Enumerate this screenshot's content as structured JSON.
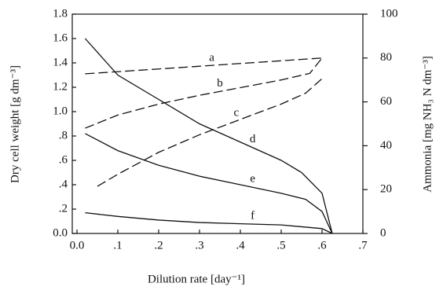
{
  "chart_data": {
    "type": "line",
    "x_label": "Dilution rate [day⁻¹]",
    "y_label": "Dry cell weight [g dm⁻³]",
    "y2_label": "Ammonia [mg NH₃ N dm⁻³]",
    "xlim": [
      0,
      0.7
    ],
    "xticks": [
      {
        "value": 0,
        "label": "0.0"
      },
      {
        "value": 0.1,
        "label": ".1"
      },
      {
        "value": 0.2,
        "label": ".2"
      },
      {
        "value": 0.3,
        "label": ".3"
      },
      {
        "value": 0.4,
        "label": ".4"
      },
      {
        "value": 0.5,
        "label": ".5"
      },
      {
        "value": 0.6,
        "label": ".6"
      },
      {
        "value": 0.7,
        "label": ".7"
      }
    ],
    "ylim": [
      0,
      1.8
    ],
    "yticks": [
      {
        "value": 0,
        "label": "0.0"
      },
      {
        "value": 0.2,
        "label": ".2"
      },
      {
        "value": 0.4,
        "label": ".4"
      },
      {
        "value": 0.6,
        "label": ".6"
      },
      {
        "value": 0.8,
        "label": ".8"
      },
      {
        "value": 1,
        "label": "1.0"
      },
      1.2,
      1.4,
      1.6,
      1.8
    ],
    "y2lim": [
      0,
      100
    ],
    "y2ticks": [
      0,
      20,
      40,
      60,
      80,
      100
    ],
    "series": [
      {
        "name": "a",
        "color": "#111",
        "dash": true,
        "axis": "y2",
        "x": [
          0.02,
          0.2,
          0.4,
          0.6
        ],
        "values": [
          72.8,
          75,
          77.5,
          80
        ]
      },
      {
        "name": "b",
        "color": "#111",
        "dash": true,
        "axis": "y2",
        "x": [
          0.02,
          0.1,
          0.2,
          0.3,
          0.4,
          0.5,
          0.57,
          0.6
        ],
        "values": [
          48,
          54,
          59,
          63,
          66.5,
          70,
          73,
          80
        ]
      },
      {
        "name": "c",
        "color": "#111",
        "dash": true,
        "axis": "y2",
        "x": [
          0.05,
          0.1,
          0.2,
          0.3,
          0.4,
          0.5,
          0.56,
          0.6
        ],
        "values": [
          21.5,
          27,
          37,
          45,
          52,
          59,
          64,
          70.6
        ]
      },
      {
        "name": "d",
        "color": "#111",
        "dash": false,
        "x": [
          0.02,
          0.1,
          0.2,
          0.3,
          0.4,
          0.5,
          0.55,
          0.6,
          0.625
        ],
        "values": [
          1.6,
          1.3,
          1.1,
          0.9,
          0.75,
          0.6,
          0.5,
          0.33,
          0
        ]
      },
      {
        "name": "e",
        "color": "#111",
        "dash": false,
        "x": [
          0.02,
          0.1,
          0.2,
          0.3,
          0.4,
          0.5,
          0.56,
          0.6,
          0.625
        ],
        "values": [
          0.82,
          0.68,
          0.56,
          0.47,
          0.4,
          0.33,
          0.28,
          0.18,
          0
        ]
      },
      {
        "name": "f",
        "color": "#111",
        "dash": false,
        "x": [
          0.02,
          0.1,
          0.2,
          0.3,
          0.4,
          0.5,
          0.6,
          0.625
        ],
        "values": [
          0.17,
          0.14,
          0.11,
          0.09,
          0.08,
          0.07,
          0.04,
          0
        ]
      }
    ]
  }
}
